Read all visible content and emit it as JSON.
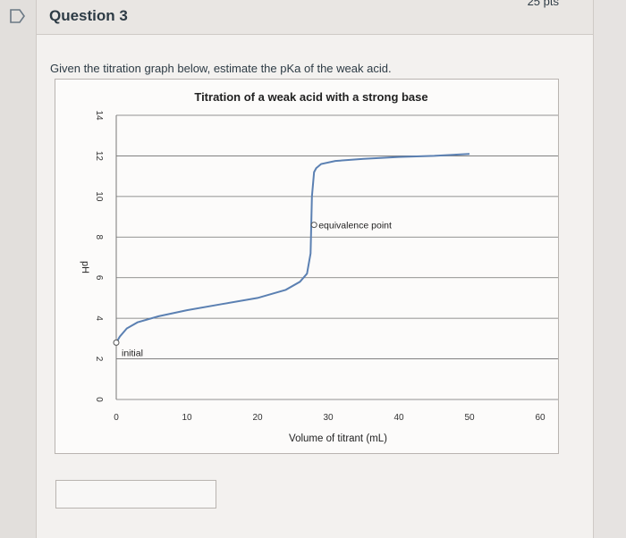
{
  "header": {
    "question_title": "Question 3",
    "points": "25 pts"
  },
  "question": {
    "prompt": "Given the titration graph below, estimate the pKa of the weak acid.",
    "answer_value": ""
  },
  "chart_data": {
    "type": "line",
    "title": "Titration of a weak acid with a strong base",
    "xlabel": "Volume of titrant (mL)",
    "ylabel": "pH",
    "xlim": [
      0,
      60
    ],
    "ylim": [
      0,
      14
    ],
    "x_ticks": [
      "0",
      "10",
      "20",
      "30",
      "40",
      "50",
      "60"
    ],
    "y_ticks": [
      "0",
      "2",
      "4",
      "6",
      "8",
      "10",
      "12",
      "14"
    ],
    "grid": "horizontal",
    "series": [
      {
        "x": [
          0,
          0.5,
          1.5,
          3,
          6,
          10,
          15,
          20,
          24,
          26,
          27,
          27.5,
          27.7,
          28,
          28.3,
          29,
          31,
          35,
          40,
          45,
          50
        ],
        "y": [
          2.8,
          3.1,
          3.5,
          3.8,
          4.1,
          4.4,
          4.7,
          5.0,
          5.4,
          5.8,
          6.2,
          7.2,
          10.0,
          11.2,
          11.4,
          11.6,
          11.75,
          11.85,
          11.95,
          12.0,
          12.1
        ]
      }
    ],
    "annotations": [
      {
        "text": "initial",
        "x": 0,
        "y": 2.8
      },
      {
        "text": "equivalence point",
        "x": 28,
        "y": 8.6
      }
    ],
    "line_color": "#5b80b2"
  }
}
